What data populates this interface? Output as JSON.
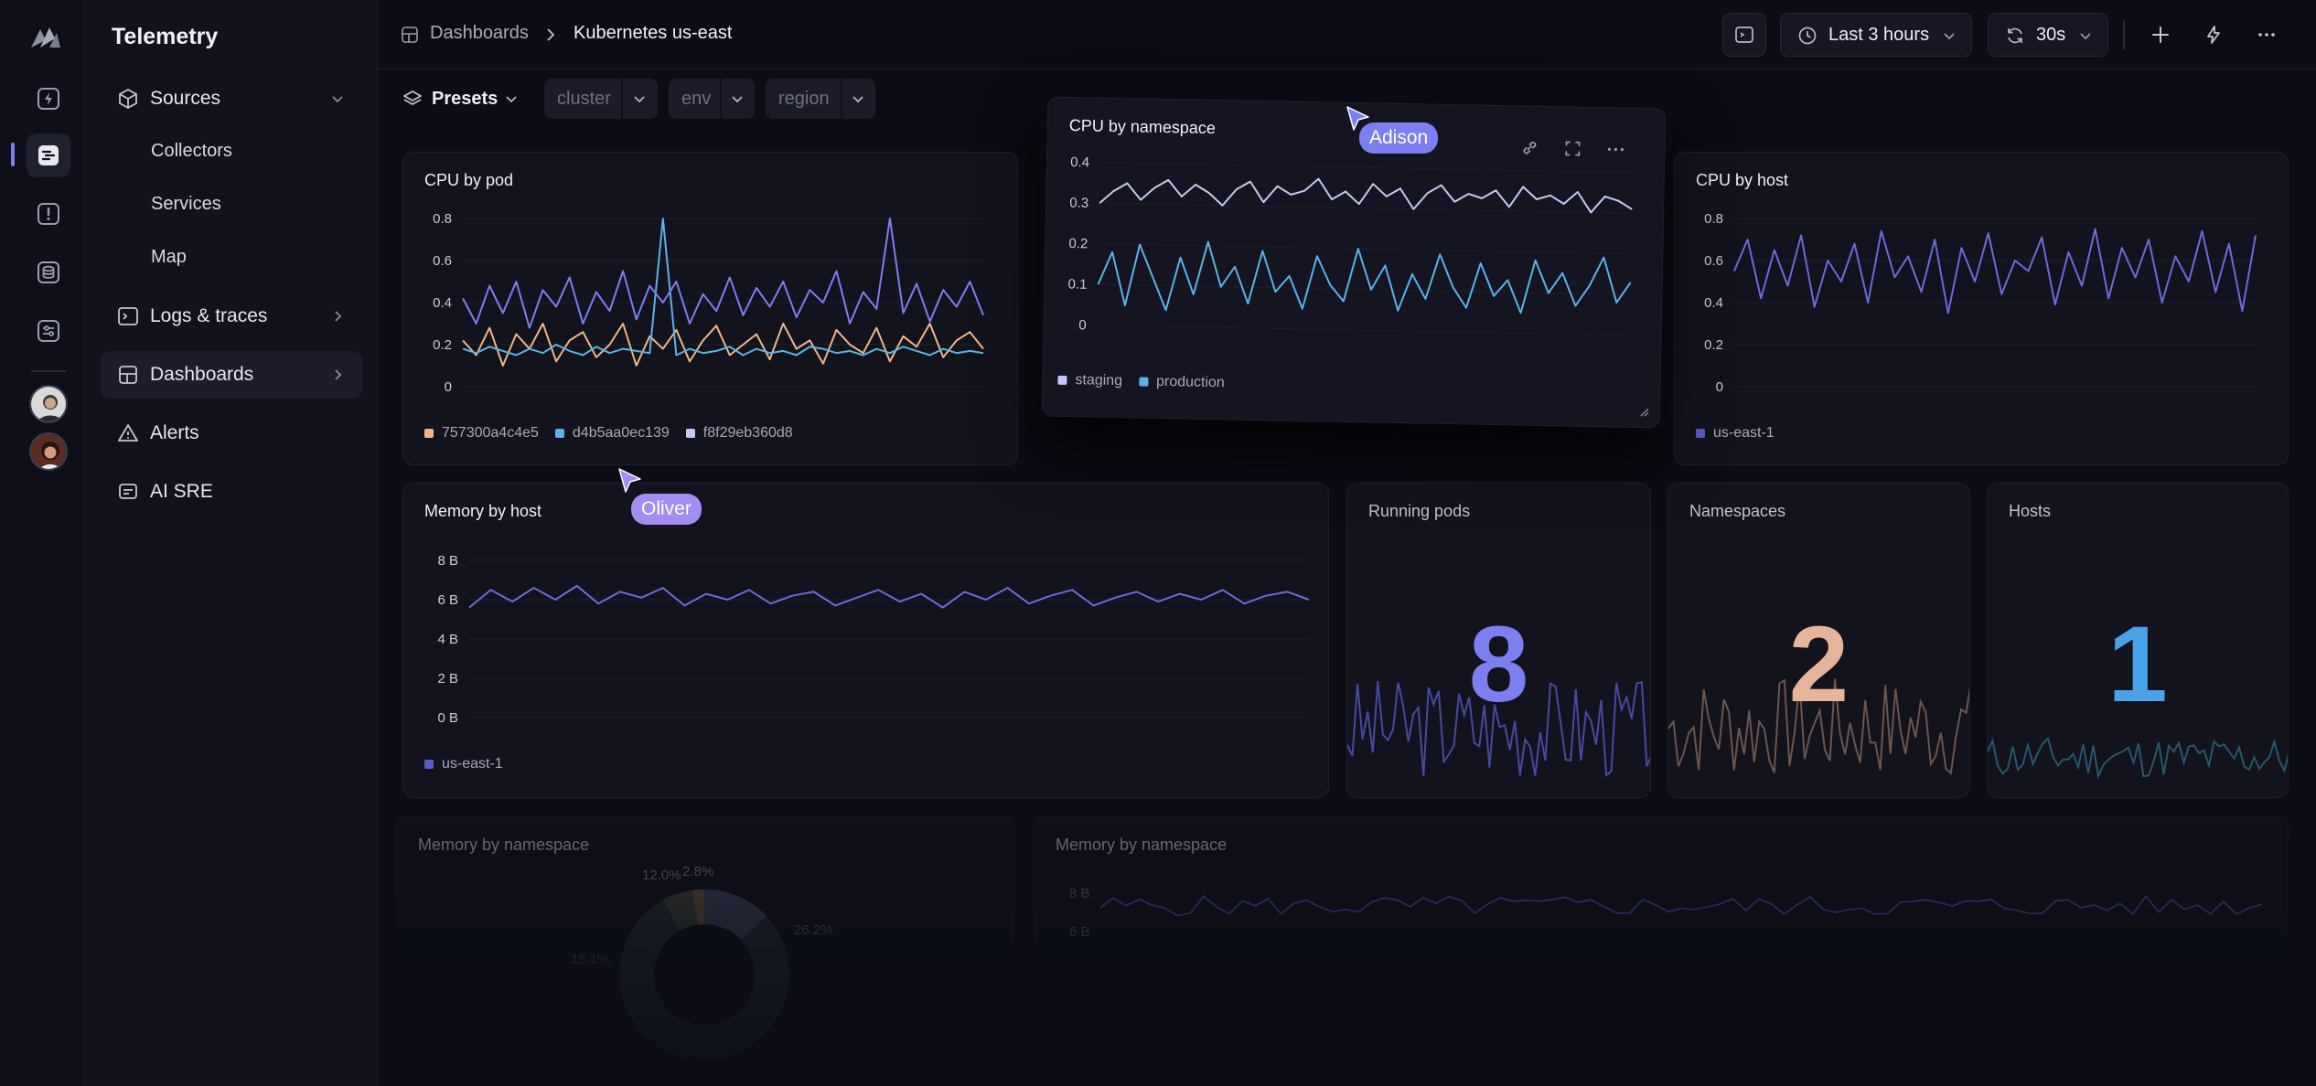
{
  "app": {
    "title": "Telemetry"
  },
  "colors": {
    "accent": "#7b7ff0",
    "series_orange": "#f0b48a",
    "series_blue": "#5ab3e6",
    "series_lilac": "#c7c8f5",
    "stat_purple": "#7b7ff0",
    "stat_peach": "#e6b49a",
    "stat_blue": "#4aa3e8"
  },
  "rail": {
    "icons": [
      "app-logo-icon",
      "lightning-icon",
      "logs-icon",
      "alert-icon",
      "database-icon",
      "sliders-icon"
    ]
  },
  "sidebar": {
    "items": [
      {
        "label": "Sources",
        "icon": "cube-icon"
      },
      {
        "label": "Logs & traces",
        "icon": "terminal-icon"
      },
      {
        "label": "Dashboards",
        "icon": "grid-icon"
      },
      {
        "label": "Alerts",
        "icon": "warning-icon"
      },
      {
        "label": "AI SRE",
        "icon": "chat-icon"
      }
    ],
    "sources_children": [
      "Collectors",
      "Services",
      "Map"
    ]
  },
  "breadcrumb": {
    "root": "Dashboards",
    "current": "Kubernetes us-east"
  },
  "toolbar": {
    "time_range": "Last 3 hours",
    "refresh": "30s"
  },
  "filters": {
    "presets": "Presets",
    "cluster": "cluster",
    "env": "env",
    "region": "region"
  },
  "panels": {
    "cpu_by_pod": {
      "title": "CPU by pod",
      "legend": [
        "757300a4c4e5",
        "d4b5aa0ec139",
        "f8f29eb360d8"
      ]
    },
    "cpu_by_namespace": {
      "title": "CPU by namespace",
      "legend": [
        "staging",
        "production"
      ]
    },
    "cpu_by_host": {
      "title": "CPU by host",
      "legend": [
        "us-east-1"
      ]
    },
    "memory_by_host": {
      "title": "Memory by host",
      "legend": [
        "us-east-1"
      ]
    },
    "running_pods": {
      "title": "Running pods",
      "value": "8"
    },
    "namespaces": {
      "title": "Namespaces",
      "value": "2"
    },
    "hosts": {
      "title": "Hosts",
      "value": "1"
    },
    "memory_by_namespace_pie": {
      "title": "Memory by namespace",
      "labels": [
        "12.0%",
        "2.8%",
        "26.2%",
        "15.1%"
      ]
    },
    "memory_by_namespace_line": {
      "title": "Memory by namespace",
      "ticks": [
        "8 B",
        "6 B"
      ]
    }
  },
  "cursors": {
    "adison": "Adison",
    "oliver": "Oliver"
  },
  "chart_data": [
    {
      "type": "line",
      "title": "CPU by pod",
      "yticks": [
        "0.8",
        "0.6",
        "0.4",
        "0.2",
        "0"
      ],
      "ylim": [
        0,
        0.8
      ],
      "series": [
        {
          "name": "757300a4c4e5",
          "values": [
            0.22,
            0.15,
            0.28,
            0.1,
            0.25,
            0.18,
            0.3,
            0.12,
            0.22,
            0.26,
            0.14,
            0.2,
            0.3,
            0.1,
            0.24,
            0.18,
            0.27,
            0.12,
            0.22,
            0.29,
            0.15,
            0.2,
            0.25,
            0.13,
            0.3,
            0.18,
            0.22,
            0.11,
            0.27,
            0.2,
            0.16,
            0.28,
            0.12,
            0.24,
            0.19,
            0.3,
            0.14,
            0.22,
            0.26,
            0.18
          ]
        },
        {
          "name": "d4b5aa0ec139",
          "values": [
            0.18,
            0.16,
            0.19,
            0.17,
            0.15,
            0.18,
            0.16,
            0.2,
            0.17,
            0.15,
            0.19,
            0.16,
            0.18,
            0.17,
            0.16,
            0.8,
            0.15,
            0.18,
            0.16,
            0.17,
            0.19,
            0.15,
            0.18,
            0.16,
            0.17,
            0.15,
            0.19,
            0.18,
            0.16,
            0.17,
            0.15,
            0.18,
            0.16,
            0.19,
            0.17,
            0.15,
            0.18,
            0.16,
            0.17,
            0.16
          ]
        },
        {
          "name": "f8f29eb360d8",
          "values": [
            0.42,
            0.3,
            0.48,
            0.35,
            0.5,
            0.28,
            0.46,
            0.38,
            0.52,
            0.3,
            0.45,
            0.36,
            0.55,
            0.32,
            0.48,
            0.4,
            0.5,
            0.3,
            0.44,
            0.36,
            0.52,
            0.34,
            0.47,
            0.38,
            0.5,
            0.33,
            0.46,
            0.4,
            0.55,
            0.3,
            0.45,
            0.37,
            0.8,
            0.35,
            0.49,
            0.31,
            0.46,
            0.38,
            0.5,
            0.34
          ]
        }
      ]
    },
    {
      "type": "line",
      "title": "CPU by namespace",
      "yticks": [
        "0.4",
        "0.3",
        "0.2",
        "0.1",
        "0"
      ],
      "ylim": [
        0,
        0.4
      ],
      "series": [
        {
          "name": "staging",
          "values": [
            0.3,
            0.33,
            0.35,
            0.31,
            0.34,
            0.36,
            0.32,
            0.35,
            0.33,
            0.3,
            0.34,
            0.36,
            0.31,
            0.35,
            0.33,
            0.34,
            0.37,
            0.32,
            0.34,
            0.31,
            0.36,
            0.33,
            0.35,
            0.3,
            0.34,
            0.36,
            0.32,
            0.34,
            0.33,
            0.35,
            0.31,
            0.36,
            0.33,
            0.34,
            0.32,
            0.35,
            0.3,
            0.34,
            0.33,
            0.31
          ]
        },
        {
          "name": "production",
          "values": [
            0.1,
            0.18,
            0.05,
            0.2,
            0.12,
            0.04,
            0.17,
            0.08,
            0.21,
            0.1,
            0.15,
            0.06,
            0.19,
            0.09,
            0.13,
            0.05,
            0.18,
            0.11,
            0.07,
            0.2,
            0.1,
            0.16,
            0.05,
            0.14,
            0.08,
            0.19,
            0.11,
            0.06,
            0.17,
            0.09,
            0.13,
            0.05,
            0.18,
            0.1,
            0.15,
            0.07,
            0.12,
            0.19,
            0.08,
            0.13
          ]
        }
      ]
    },
    {
      "type": "line",
      "title": "CPU by host",
      "yticks": [
        "0.8",
        "0.6",
        "0.4",
        "0.2",
        "0"
      ],
      "ylim": [
        0,
        0.8
      ],
      "series": [
        {
          "name": "us-east-1",
          "values": [
            0.55,
            0.7,
            0.42,
            0.65,
            0.48,
            0.72,
            0.38,
            0.6,
            0.5,
            0.68,
            0.4,
            0.74,
            0.52,
            0.62,
            0.45,
            0.7,
            0.35,
            0.66,
            0.5,
            0.73,
            0.44,
            0.6,
            0.55,
            0.71,
            0.39,
            0.64,
            0.48,
            0.75,
            0.42,
            0.66,
            0.52,
            0.7,
            0.4,
            0.62,
            0.5,
            0.74,
            0.45,
            0.68,
            0.36,
            0.72
          ]
        }
      ]
    },
    {
      "type": "line",
      "title": "Memory by host",
      "yticks": [
        "8 B",
        "6 B",
        "4 B",
        "2 B",
        "0 B"
      ],
      "ylim": [
        0,
        8
      ],
      "series": [
        {
          "name": "us-east-1",
          "values": [
            5.6,
            6.5,
            5.9,
            6.6,
            6.0,
            6.7,
            5.8,
            6.4,
            6.1,
            6.6,
            5.7,
            6.3,
            6.0,
            6.5,
            5.8,
            6.2,
            6.4,
            5.7,
            6.1,
            6.5,
            5.9,
            6.3,
            5.6,
            6.4,
            6.0,
            6.6,
            5.8,
            6.2,
            6.5,
            5.7,
            6.1,
            6.4,
            5.9,
            6.3,
            6.0,
            6.5,
            5.8,
            6.2,
            6.4,
            6.0
          ]
        }
      ]
    }
  ]
}
